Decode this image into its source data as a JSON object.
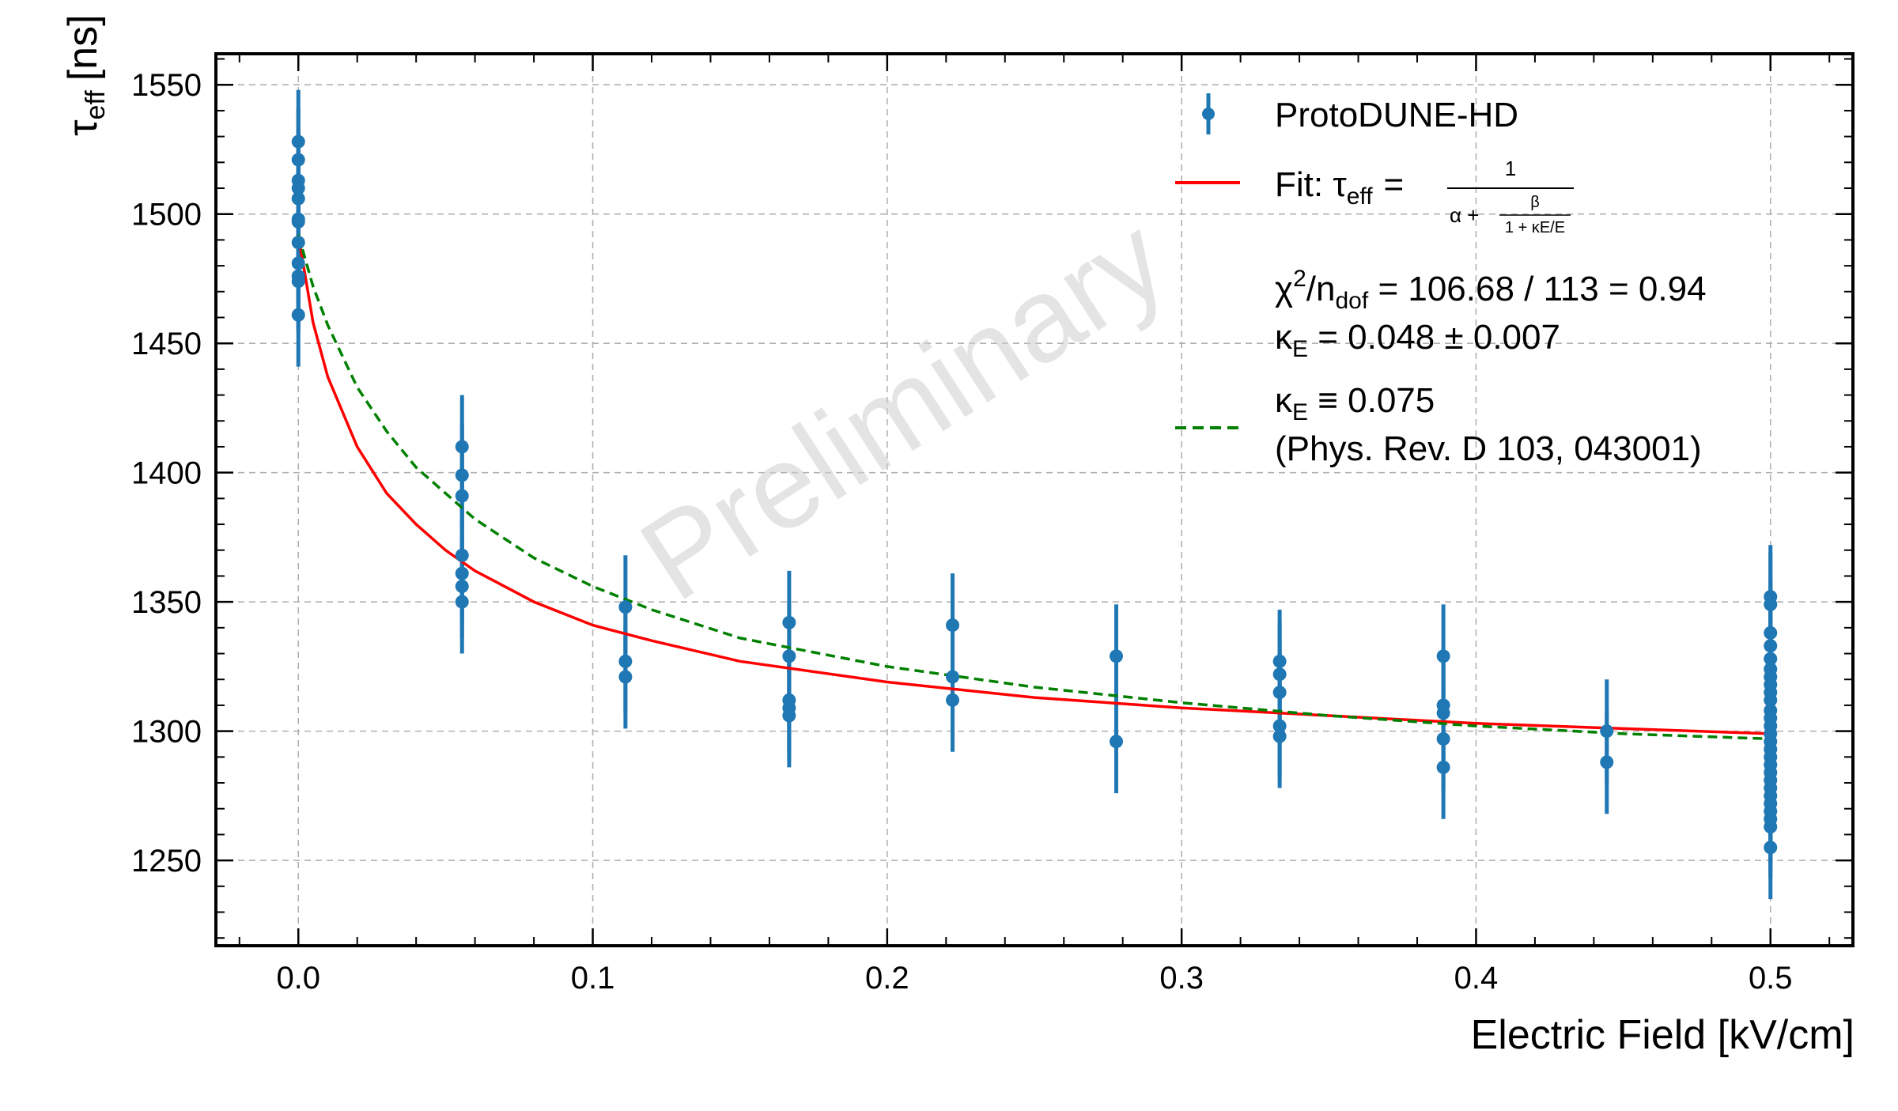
{
  "chart_data": {
    "type": "scatter",
    "watermark": "Preliminary",
    "xlabel": "Electric Field [kV/cm]",
    "ylabel": {
      "symbol": "τ",
      "sub": "eff",
      "unit": "[ns]"
    },
    "xlim": [
      -0.028,
      0.528
    ],
    "ylim": [
      1217,
      1562
    ],
    "xticks": [
      0.0,
      0.1,
      0.2,
      0.3,
      0.4,
      0.5
    ],
    "xtick_labels": [
      "0.0",
      "0.1",
      "0.2",
      "0.3",
      "0.4",
      "0.5"
    ],
    "yticks": [
      1250,
      1300,
      1350,
      1400,
      1450,
      1500,
      1550
    ],
    "ytick_labels": [
      "1250",
      "1300",
      "1350",
      "1400",
      "1450",
      "1500",
      "1550"
    ],
    "grid": true,
    "legend_position": "top-right",
    "colors": {
      "data": "#1f77b4",
      "fit": "#ff0000",
      "reference": "#008000",
      "grid": "#b0b0b0"
    },
    "series": [
      {
        "name": "ProtoDUNE-HD",
        "kind": "errorbar",
        "error": 20,
        "points": [
          [
            0.0,
            1528
          ],
          [
            0.0,
            1521
          ],
          [
            0.0,
            1513
          ],
          [
            0.0,
            1510
          ],
          [
            0.0,
            1506
          ],
          [
            0.0,
            1498
          ],
          [
            0.0,
            1497
          ],
          [
            0.0,
            1489
          ],
          [
            0.0,
            1481
          ],
          [
            0.0,
            1476
          ],
          [
            0.0,
            1474
          ],
          [
            0.0,
            1461
          ],
          [
            0.0556,
            1410
          ],
          [
            0.0556,
            1399
          ],
          [
            0.0556,
            1391
          ],
          [
            0.0556,
            1368
          ],
          [
            0.0556,
            1361
          ],
          [
            0.0556,
            1356
          ],
          [
            0.0556,
            1350
          ],
          [
            0.1111,
            1348
          ],
          [
            0.1111,
            1327
          ],
          [
            0.1111,
            1321
          ],
          [
            0.1667,
            1342
          ],
          [
            0.1667,
            1329
          ],
          [
            0.1667,
            1312
          ],
          [
            0.1667,
            1309
          ],
          [
            0.1667,
            1306
          ],
          [
            0.2222,
            1341
          ],
          [
            0.2222,
            1321
          ],
          [
            0.2222,
            1312
          ],
          [
            0.2778,
            1329
          ],
          [
            0.2778,
            1296
          ],
          [
            0.3333,
            1327
          ],
          [
            0.3333,
            1322
          ],
          [
            0.3333,
            1315
          ],
          [
            0.3333,
            1302
          ],
          [
            0.3333,
            1298
          ],
          [
            0.3889,
            1329
          ],
          [
            0.3889,
            1310
          ],
          [
            0.3889,
            1307
          ],
          [
            0.3889,
            1297
          ],
          [
            0.3889,
            1286
          ],
          [
            0.4444,
            1300
          ],
          [
            0.4444,
            1288
          ],
          [
            0.5,
            1352
          ],
          [
            0.5,
            1349
          ],
          [
            0.5,
            1338
          ],
          [
            0.5,
            1333
          ],
          [
            0.5,
            1328
          ],
          [
            0.5,
            1324
          ],
          [
            0.5,
            1321
          ],
          [
            0.5,
            1318
          ],
          [
            0.5,
            1315
          ],
          [
            0.5,
            1312
          ],
          [
            0.5,
            1308
          ],
          [
            0.5,
            1305
          ],
          [
            0.5,
            1302
          ],
          [
            0.5,
            1299
          ],
          [
            0.5,
            1296
          ],
          [
            0.5,
            1293
          ],
          [
            0.5,
            1290
          ],
          [
            0.5,
            1287
          ],
          [
            0.5,
            1284
          ],
          [
            0.5,
            1281
          ],
          [
            0.5,
            1278
          ],
          [
            0.5,
            1275
          ],
          [
            0.5,
            1272
          ],
          [
            0.5,
            1269
          ],
          [
            0.5,
            1266
          ],
          [
            0.5,
            1263
          ],
          [
            0.5,
            1255
          ]
        ]
      },
      {
        "name": "Fit",
        "kind": "line",
        "style": "solid",
        "x": [
          0.0,
          0.005,
          0.01,
          0.02,
          0.03,
          0.04,
          0.05,
          0.06,
          0.08,
          0.1,
          0.12,
          0.15,
          0.2,
          0.25,
          0.3,
          0.35,
          0.4,
          0.45,
          0.5
        ],
        "y": [
          1492,
          1458,
          1437,
          1410,
          1392,
          1380,
          1370,
          1362,
          1350,
          1341,
          1335,
          1327,
          1319,
          1313,
          1309,
          1306,
          1303,
          1301,
          1299
        ]
      },
      {
        "name": "κE ≡ 0.075",
        "kind": "line",
        "style": "dashed",
        "x": [
          0.0,
          0.005,
          0.01,
          0.02,
          0.03,
          0.04,
          0.05,
          0.06,
          0.08,
          0.1,
          0.12,
          0.15,
          0.2,
          0.25,
          0.3,
          0.35,
          0.4,
          0.45,
          0.5
        ],
        "y": [
          1492,
          1472,
          1457,
          1433,
          1416,
          1402,
          1392,
          1382,
          1367,
          1356,
          1347,
          1336,
          1325,
          1317,
          1311,
          1306,
          1302,
          1299,
          1297
        ]
      }
    ],
    "legend": {
      "data_label": "ProtoDUNE-HD",
      "fit_prefix": "Fit: τ",
      "fit_sub": "eff",
      "fit_equals": "=",
      "fit_numerator": "1",
      "fit_denom_lead": "α +",
      "fit_inner_num": "β",
      "fit_inner_den": "1 + κE/E",
      "chi2_prefix": "χ",
      "chi2_sup": "2",
      "chi2_mid": "/n",
      "chi2_sub": "dof",
      "chi2_value": " = 106.68 / 113 = 0.94",
      "kappa_symbol": "κ",
      "kappa_sub": "E",
      "kappa_value": " = 0.048 ± 0.007",
      "ref_symbol": "κ",
      "ref_sub": "E",
      "ref_value": " ≡ 0.075",
      "ref_citation": "(Phys. Rev. D 103, 043001)"
    }
  }
}
